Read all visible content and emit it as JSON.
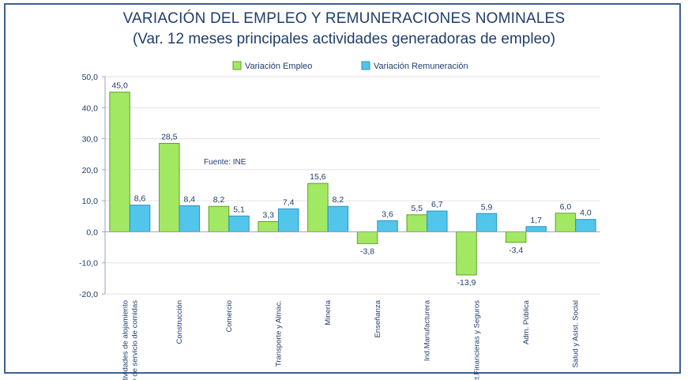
{
  "chart_data": {
    "type": "bar",
    "title": "VARIACIÓN DEL EMPLEO Y REMUNERACIONES NOMINALES",
    "subtitle": "(Var. 12 meses principales actividades generadoras de empleo)",
    "note": "Fuente: INE",
    "ylim": [
      -20,
      50
    ],
    "yticks": [
      "-20,0",
      "-10,0",
      "0,0",
      "10,0",
      "20,0",
      "30,0",
      "40,0",
      "50,0"
    ],
    "categories": [
      [
        "Actividades de alojamiento",
        "y de servicio de comidas"
      ],
      [
        "Construcción"
      ],
      [
        "Comercio"
      ],
      [
        "Transporte y Almac."
      ],
      [
        "Minería"
      ],
      [
        "Enseñanza"
      ],
      [
        "Ind.Manufacturera"
      ],
      [
        "Act.Financieras y Seguros"
      ],
      [
        "Adm. Pública"
      ],
      [
        "Salud y Asist. Social"
      ]
    ],
    "series": [
      {
        "name": "Variación Empleo",
        "color": "#a3e863",
        "stroke": "#5aa421",
        "values": [
          45.0,
          28.5,
          8.2,
          3.3,
          15.6,
          -3.8,
          5.5,
          -13.9,
          -3.4,
          6.0
        ],
        "labels": [
          "45,0",
          "28,5",
          "8,2",
          "3,3",
          "15,6",
          "-3,8",
          "5,5",
          "-13,9",
          "-3,4",
          "6,0"
        ]
      },
      {
        "name": "Variación Remuneración",
        "color": "#52c5ea",
        "stroke": "#2a93c1",
        "values": [
          8.6,
          8.4,
          5.1,
          7.4,
          8.2,
          3.6,
          6.7,
          5.9,
          1.7,
          4.0
        ],
        "labels": [
          "8,6",
          "8,4",
          "5,1",
          "7,4",
          "8,2",
          "3,6",
          "6,7",
          "5,9",
          "1,7",
          "4,0"
        ]
      }
    ],
    "grid": true,
    "legend": "top-center"
  }
}
